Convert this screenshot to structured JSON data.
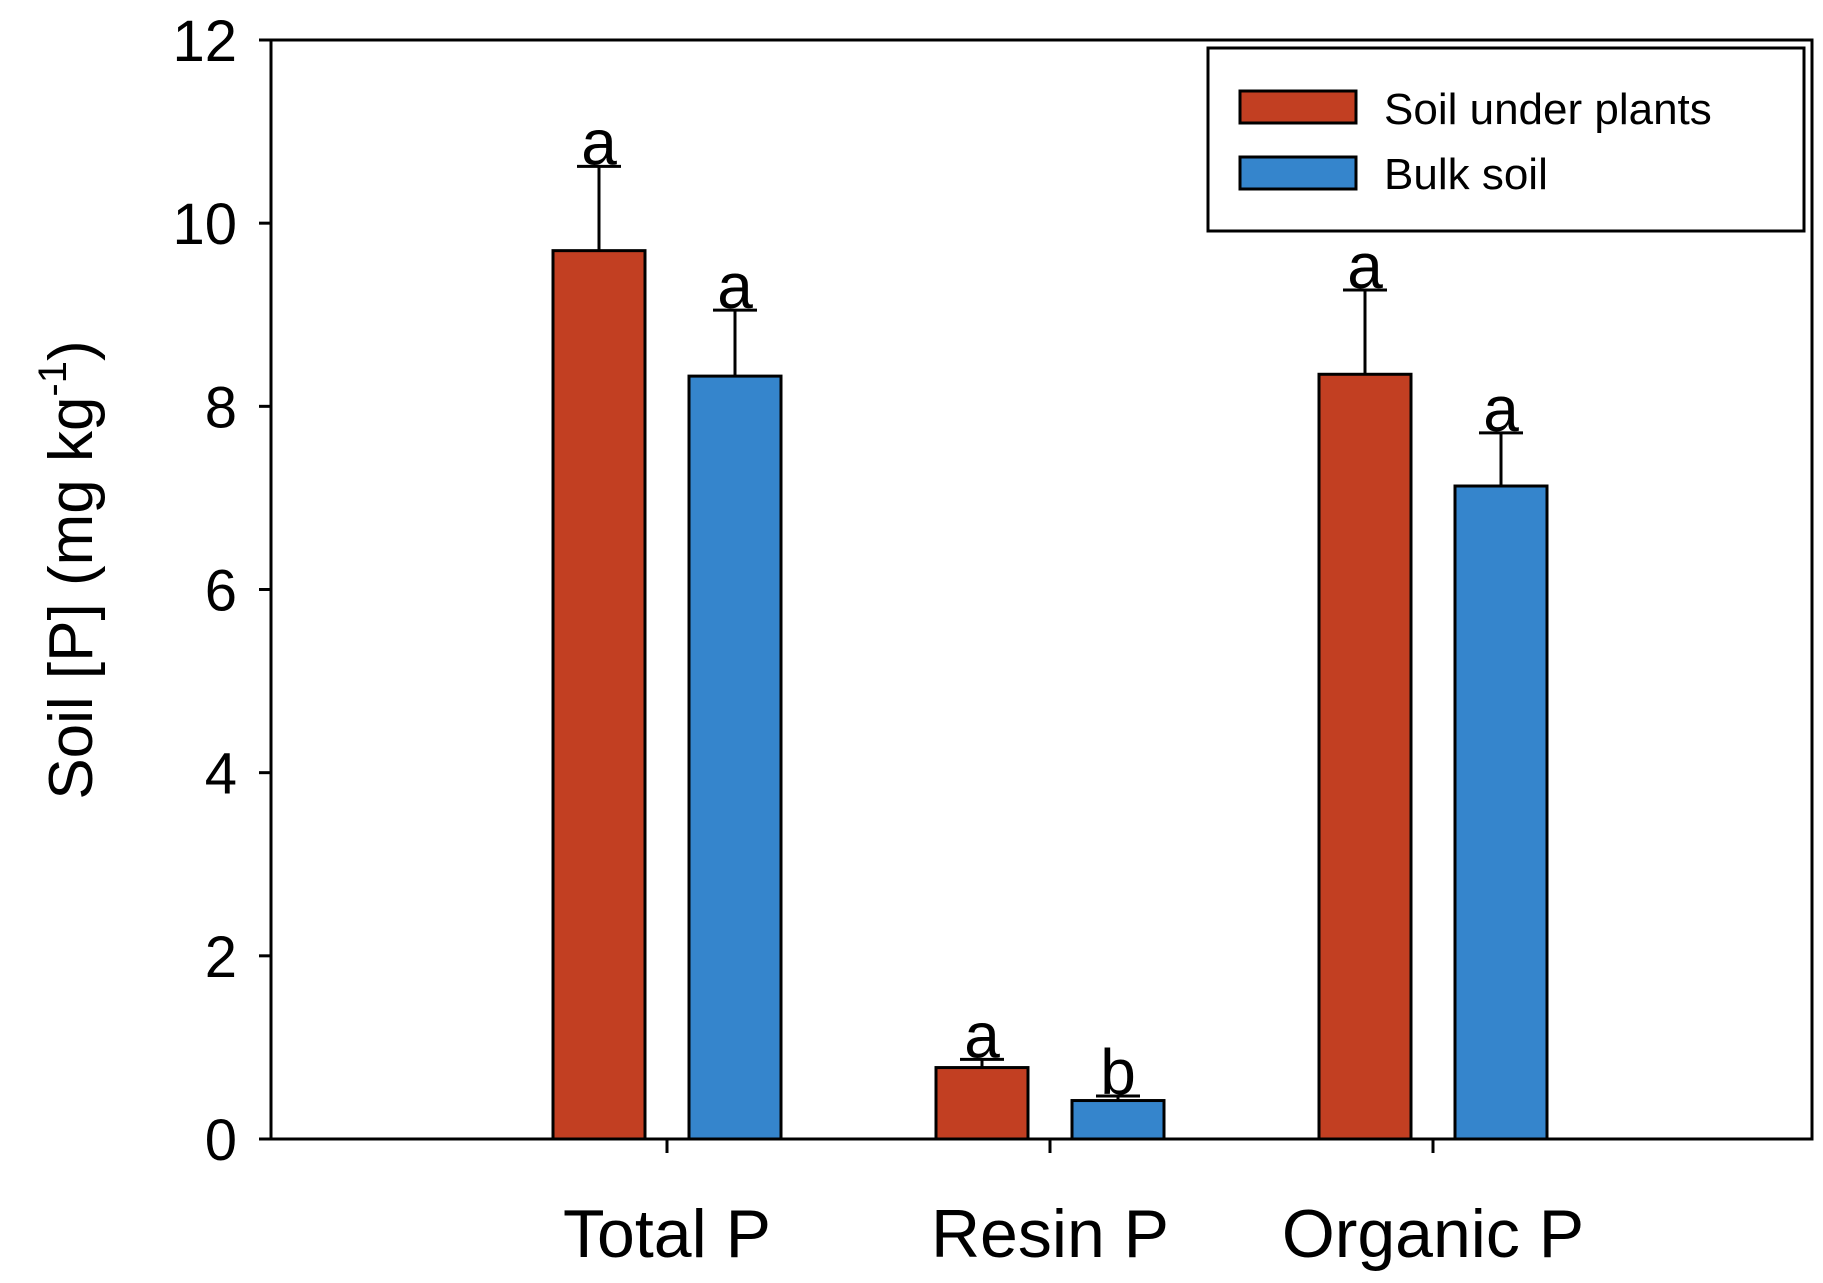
{
  "chart_data": {
    "type": "bar",
    "ylabel_main": "Soil [P] (mg kg",
    "ylabel_sup": "-1",
    "ylabel_close": ")",
    "xlabel": "",
    "ylim": [
      0,
      12
    ],
    "yticks": [
      "0",
      "2",
      "4",
      "6",
      "8",
      "10",
      "12"
    ],
    "categories": [
      "Total P",
      "Resin P",
      "Organic P"
    ],
    "series": [
      {
        "name": "Soil under plants",
        "color": "#c23f22",
        "values": [
          9.7,
          0.78,
          8.35
        ],
        "errors": [
          0.92,
          0.09,
          0.92
        ],
        "letters": [
          "a",
          "a",
          "a"
        ]
      },
      {
        "name": "Bulk soil",
        "color": "#3585cc",
        "values": [
          8.33,
          0.42,
          7.13
        ],
        "errors": [
          0.72,
          0.05,
          0.58
        ],
        "letters": [
          "a",
          "b",
          "a"
        ]
      }
    ],
    "legend_position": "top-right",
    "grid": false
  }
}
